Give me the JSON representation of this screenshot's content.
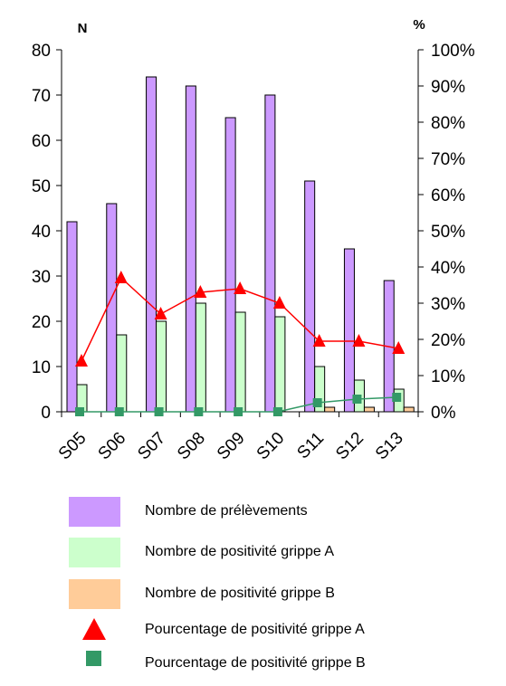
{
  "chart_data": {
    "type": "bar",
    "categories": [
      "S05",
      "S06",
      "S07",
      "S08",
      "S09",
      "S10",
      "S11",
      "S12",
      "S13"
    ],
    "left_axis": {
      "unit": "N",
      "ylim": [
        0,
        80
      ],
      "ticks": [
        "0",
        "10",
        "20",
        "30",
        "40",
        "50",
        "60",
        "70",
        "80"
      ]
    },
    "right_axis": {
      "unit": "%",
      "ylim": [
        0,
        100
      ],
      "ticks": [
        "0%",
        "10%",
        "20%",
        "30%",
        "40%",
        "50%",
        "60%",
        "70%",
        "80%",
        "90%",
        "100%"
      ]
    },
    "grid": false,
    "legend_position": "bottom",
    "series": [
      {
        "name": "Nombre de prélèvements",
        "kind": "bar",
        "axis": "left",
        "color": "#cc99ff",
        "values": [
          42,
          46,
          74,
          72,
          65,
          70,
          51,
          36,
          29
        ]
      },
      {
        "name": "Nombre de positivité grippe A",
        "kind": "bar",
        "axis": "left",
        "color": "#ccffcc",
        "values": [
          6,
          17,
          20,
          24,
          22,
          21,
          10,
          7,
          5
        ]
      },
      {
        "name": "Nombre de positivité grippe B",
        "kind": "bar",
        "axis": "left",
        "color": "#ffcc99",
        "values": [
          0,
          0,
          0,
          0,
          0,
          0,
          1,
          1,
          1
        ]
      },
      {
        "name": "Pourcentage de positivité grippe A",
        "kind": "line",
        "axis": "right",
        "color": "#ff0000",
        "marker": "triangle",
        "values": [
          14,
          37,
          27,
          33,
          34,
          30,
          19.5,
          19.5,
          17.5
        ]
      },
      {
        "name": "Pourcentage de positivité grippe B",
        "kind": "line",
        "axis": "right",
        "color": "#339966",
        "marker": "square",
        "values": [
          0,
          0,
          0,
          0,
          0,
          0,
          2.5,
          3.5,
          4
        ]
      }
    ]
  }
}
